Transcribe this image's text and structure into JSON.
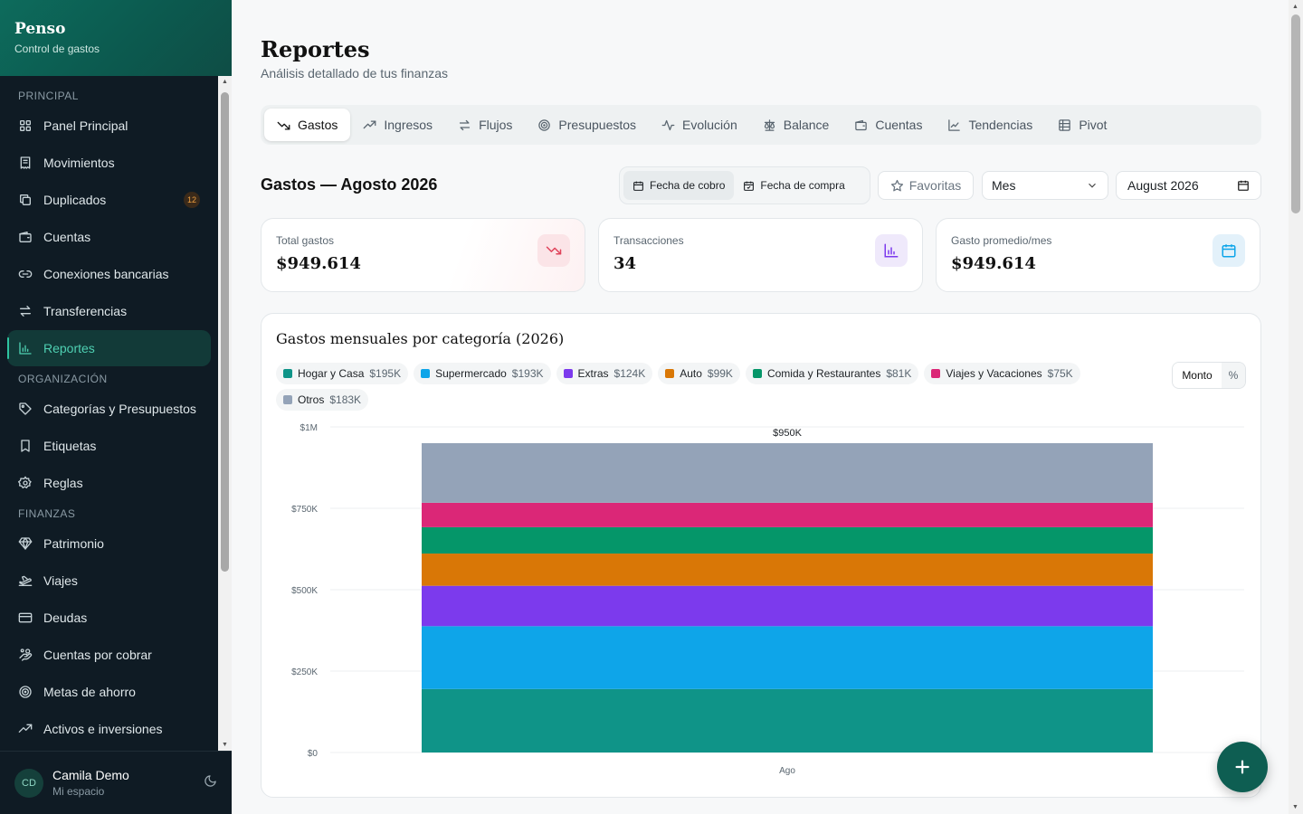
{
  "brand": {
    "title": "Penso",
    "subtitle": "Control de gastos"
  },
  "sidebar": {
    "sections": [
      {
        "title": "PRINCIPAL",
        "items": [
          {
            "label": "Panel Principal",
            "icon": "grid-icon"
          },
          {
            "label": "Movimientos",
            "icon": "receipt-icon"
          },
          {
            "label": "Duplicados",
            "icon": "copy-icon",
            "badge": "12"
          },
          {
            "label": "Cuentas",
            "icon": "wallet-icon"
          },
          {
            "label": "Conexiones bancarias",
            "icon": "link-icon"
          },
          {
            "label": "Transferencias",
            "icon": "transfer-icon"
          },
          {
            "label": "Reportes",
            "icon": "bar-chart-icon",
            "active": true
          }
        ]
      },
      {
        "title": "ORGANIZACIÓN",
        "items": [
          {
            "label": "Categorías y Presupuestos",
            "icon": "tag-icon"
          },
          {
            "label": "Etiquetas",
            "icon": "bookmark-icon"
          },
          {
            "label": "Reglas",
            "icon": "gear-icon"
          }
        ]
      },
      {
        "title": "FINANZAS",
        "items": [
          {
            "label": "Patrimonio",
            "icon": "gem-icon"
          },
          {
            "label": "Viajes",
            "icon": "plane-icon"
          },
          {
            "label": "Deudas",
            "icon": "credit-card-icon"
          },
          {
            "label": "Cuentas por cobrar",
            "icon": "hand-coins-icon"
          },
          {
            "label": "Metas de ahorro",
            "icon": "target-icon"
          },
          {
            "label": "Activos e inversiones",
            "icon": "trending-up-icon"
          }
        ]
      }
    ]
  },
  "user": {
    "initials": "CD",
    "name": "Camila Demo",
    "workspace": "Mi espacio"
  },
  "page": {
    "title": "Reportes",
    "subtitle": "Análisis detallado de tus finanzas"
  },
  "tabs": [
    {
      "label": "Gastos",
      "icon": "trending-down-icon",
      "active": true
    },
    {
      "label": "Ingresos",
      "icon": "trending-up-icon"
    },
    {
      "label": "Flujos",
      "icon": "transfer-icon"
    },
    {
      "label": "Presupuestos",
      "icon": "target-icon"
    },
    {
      "label": "Evolución",
      "icon": "activity-icon"
    },
    {
      "label": "Balance",
      "icon": "scale-icon"
    },
    {
      "label": "Cuentas",
      "icon": "wallet-icon"
    },
    {
      "label": "Tendencias",
      "icon": "line-chart-icon"
    },
    {
      "label": "Pivot",
      "icon": "table-icon"
    }
  ],
  "filters": {
    "section_title": "Gastos — Agosto 2026",
    "date_modes": [
      {
        "label": "Fecha de cobro",
        "active": true
      },
      {
        "label": "Fecha de compra",
        "active": false
      }
    ],
    "favorites": "Favoritas",
    "period": "Mes",
    "month": "August 2026"
  },
  "kpis": [
    {
      "label": "Total gastos",
      "value": "$949.614",
      "icon": "trending-down-icon",
      "color": "#e0435a"
    },
    {
      "label": "Transacciones",
      "value": "34",
      "icon": "bar-chart-icon",
      "color": "#7c3aed"
    },
    {
      "label": "Gasto promedio/mes",
      "value": "$949.614",
      "icon": "calendar-icon",
      "color": "#0ea5e9"
    }
  ],
  "chart": {
    "title": "Gastos mensuales por categoría (2026)",
    "mode_options": [
      "Monto",
      "%"
    ],
    "mode_selected": "Monto"
  },
  "chart_data": {
    "type": "bar",
    "stacked": true,
    "categories": [
      "Ago"
    ],
    "series": [
      {
        "name": "Hogar y Casa",
        "label": "$195K",
        "values": [
          195000
        ],
        "color": "#0f9488"
      },
      {
        "name": "Supermercado",
        "label": "$193K",
        "values": [
          193000
        ],
        "color": "#0ea5e9"
      },
      {
        "name": "Extras",
        "label": "$124K",
        "values": [
          124000
        ],
        "color": "#7c3aed"
      },
      {
        "name": "Auto",
        "label": "$99K",
        "values": [
          99000
        ],
        "color": "#d97706"
      },
      {
        "name": "Comida y Restaurantes",
        "label": "$81K",
        "values": [
          81000
        ],
        "color": "#059669"
      },
      {
        "name": "Viajes y Vacaciones",
        "label": "$75K",
        "values": [
          75000
        ],
        "color": "#db2777"
      },
      {
        "name": "Otros",
        "label": "$183K",
        "values": [
          183000
        ],
        "color": "#94a3b8"
      }
    ],
    "totals": [
      "$950K"
    ],
    "y_ticks": [
      0,
      250000,
      500000,
      750000,
      1000000
    ],
    "y_tick_labels": [
      "$0",
      "$250K",
      "$500K",
      "$750K",
      "$1M"
    ],
    "ylim": [
      0,
      1000000
    ],
    "grid": true,
    "legend": "top"
  }
}
